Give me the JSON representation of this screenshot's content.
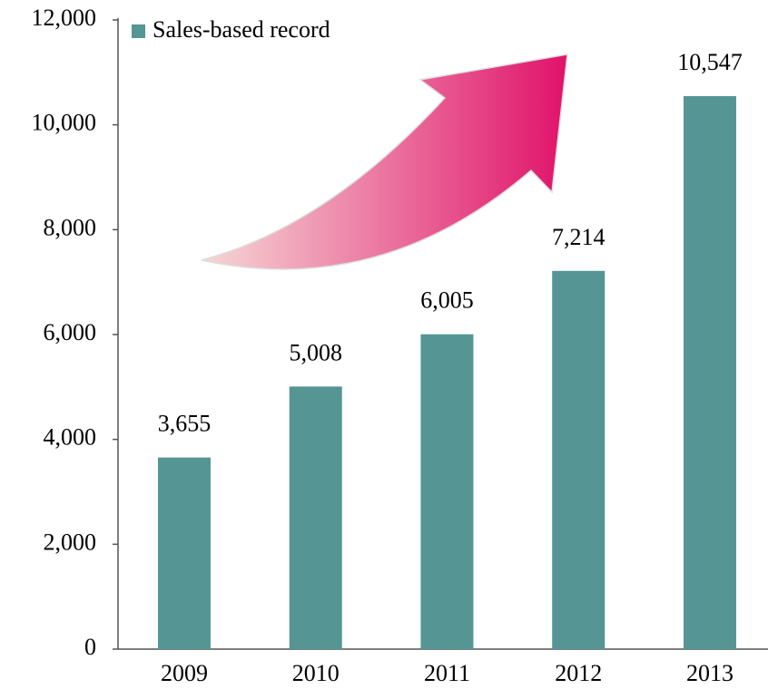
{
  "chart_data": {
    "type": "bar",
    "categories": [
      "2009",
      "2010",
      "2011",
      "2012",
      "2013"
    ],
    "series": [
      {
        "name": "Sales-based record",
        "color": "#559593",
        "values": [
          3655,
          5008,
          6005,
          7214,
          10547
        ],
        "value_labels": [
          "3,655",
          "5,008",
          "6,005",
          "7,214",
          "10,547"
        ]
      }
    ],
    "ylim": [
      0,
      12000
    ],
    "yticks": [
      0,
      {
        "value": 2000,
        "label": "2,000"
      },
      {
        "value": 4000,
        "label": "4,000"
      },
      {
        "value": 6000,
        "label": "6,000"
      },
      {
        "value": 8000,
        "label": "8,000"
      },
      {
        "value": 10000,
        "label": "10,000"
      },
      {
        "value": 12000,
        "label": "12,000"
      }
    ],
    "grid": false,
    "legend": "top-left"
  }
}
